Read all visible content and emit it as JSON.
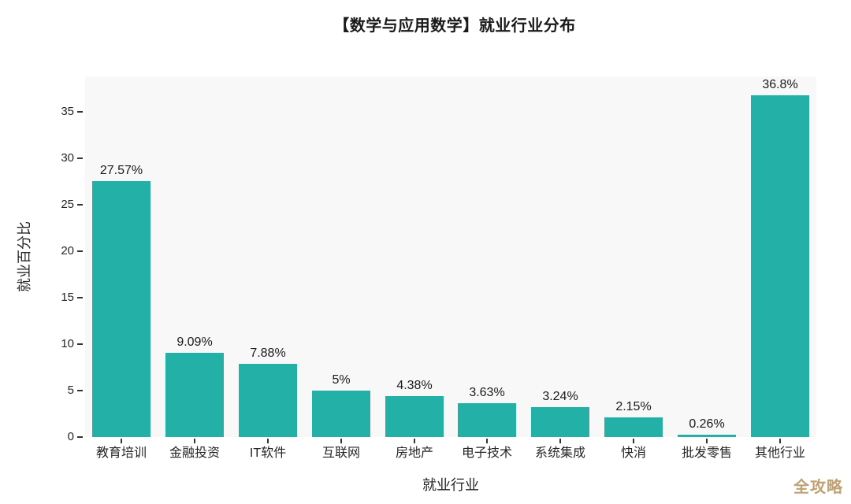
{
  "title": "【数学与应用数学】就业行业分布",
  "watermark": "全攻略",
  "colors": {
    "bar": "#23b1a7",
    "plot_background": "#f8f8f8",
    "text": "#262626",
    "watermark": "#bfa173"
  },
  "chart_data": {
    "type": "bar",
    "title": "【数学与应用数学】就业行业分布",
    "xlabel": "就业行业",
    "ylabel": "就业百分比",
    "categories": [
      "教育培训",
      "金融投资",
      "IT软件",
      "互联网",
      "房地产",
      "电子技术",
      "系统集成",
      "快消",
      "批发零售",
      "其他行业"
    ],
    "values": [
      27.57,
      9.09,
      7.88,
      5,
      4.38,
      3.63,
      3.24,
      2.15,
      0.26,
      36.8
    ],
    "value_labels": [
      "27.57%",
      "9.09%",
      "7.88%",
      "5%",
      "4.38%",
      "3.63%",
      "3.24%",
      "2.15%",
      "0.26%",
      "36.8%"
    ],
    "yticks": [
      0,
      5,
      10,
      15,
      20,
      25,
      30,
      35
    ],
    "ylim": [
      0,
      38.85
    ],
    "grid": false,
    "legend_position": "none",
    "bar_color": "#23b1a7"
  }
}
